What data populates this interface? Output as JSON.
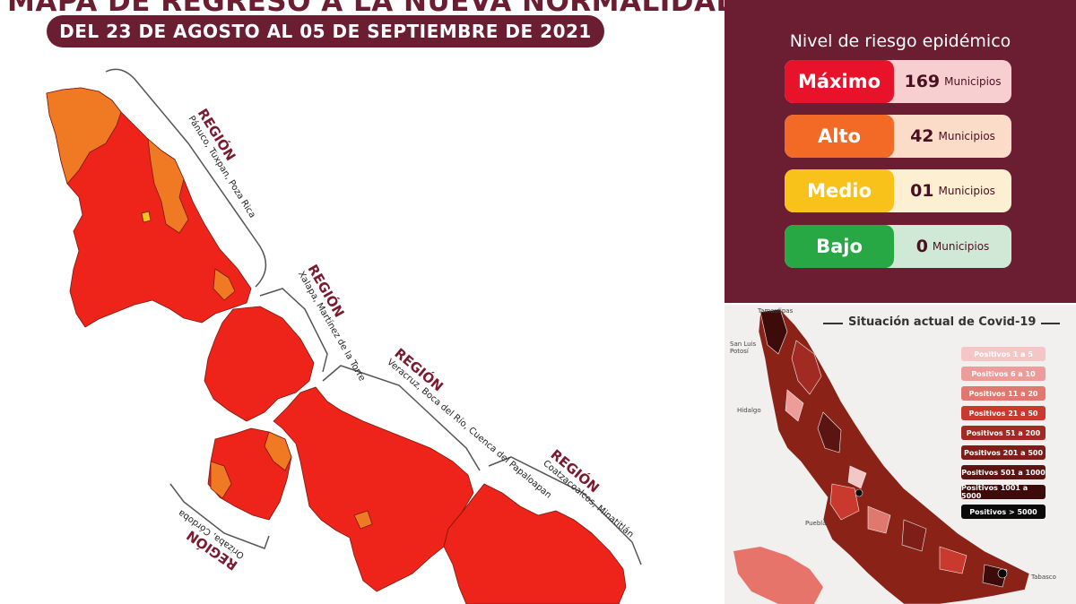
{
  "header": {
    "title": "MAPA DE REGRESO A LA NUEVA NORMALIDAD",
    "subtitle": "DEL 23 DE AGOSTO AL 05 DE SEPTIEMBRE DE 2021"
  },
  "regions": [
    {
      "word": "REGIÓN",
      "places": "Pánuco, Tuxpan, Poza Rica"
    },
    {
      "word": "REGIÓN",
      "places": "Xalapa, Martínez de la Torre"
    },
    {
      "word": "REGIÓN",
      "places": "Veracruz, Boca del Río, Cuenca del Papaloapan"
    },
    {
      "word": "REGIÓN",
      "places": "Coatzacoalcos, Minatitlán"
    },
    {
      "word": "REGIÓN",
      "places": "Orizaba, Córdoba"
    }
  ],
  "risk": {
    "title": "Nivel de riesgo epidémico",
    "levels": [
      {
        "label": "Máximo",
        "count": "169",
        "unit": "Municipios",
        "color": "#e8132a",
        "bg": "#f7cfd1"
      },
      {
        "label": "Alto",
        "count": "42",
        "unit": "Municipios",
        "color": "#f26a25",
        "bg": "#fbdcc8"
      },
      {
        "label": "Medio",
        "count": "01",
        "unit": "Municipios",
        "color": "#f9c21b",
        "bg": "#fcefd2"
      },
      {
        "label": "Bajo",
        "count": "0",
        "unit": "Municipios",
        "color": "#27a844",
        "bg": "#cfe9d6"
      }
    ]
  },
  "covid": {
    "title": "Situación actual de Covid-19",
    "legend": [
      {
        "label": "Positivos 1 a 5",
        "color": "#f4c6c6"
      },
      {
        "label": "Positivos 6 a 10",
        "color": "#ec9c99"
      },
      {
        "label": "Positivos 11 a 20",
        "color": "#e07870"
      },
      {
        "label": "Positivos 21 a 50",
        "color": "#c9392e"
      },
      {
        "label": "Positivos 51 a 200",
        "color": "#a12a22"
      },
      {
        "label": "Positivos 201 a 500",
        "color": "#7d1f18"
      },
      {
        "label": "Positivos 501 a 1000",
        "color": "#5a1411"
      },
      {
        "label": "Positivos 1001 a 5000",
        "color": "#3d0c0a"
      },
      {
        "label": "Positivos > 5000",
        "color": "#0a0a0a"
      }
    ],
    "places": [
      "Tamaulipas",
      "San Luis Potosí",
      "Hidalgo",
      "Puebla",
      "Tabasco"
    ]
  }
}
